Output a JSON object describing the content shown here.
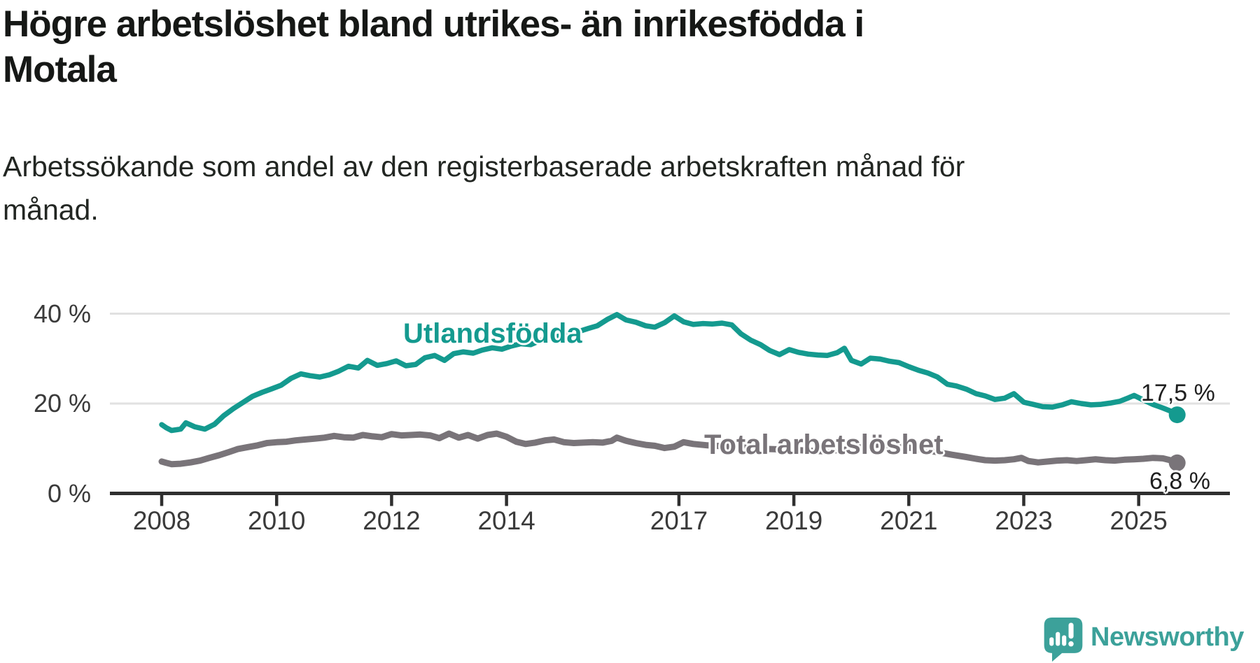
{
  "header": {
    "title_line1": "Högre arbetslöshet bland utrikes- än inrikesfödda i",
    "title_line2": "Motala",
    "subtitle_line1": "Arbetssökande som andel av den registerbaserade arbetskraften månad för",
    "subtitle_line2": "månad."
  },
  "branding": {
    "logo_text": "Newsworthy",
    "logo_color": "#3ca19a",
    "logo_icon": "speech-bubble-with-bar-chart-and-exclamation"
  },
  "chart_data": {
    "type": "line",
    "title": "Högre arbetslöshet bland utrikes- än inrikesfödda i Motala",
    "subtitle": "Arbetssökande som andel av den registerbaserade arbetskraften månad för månad.",
    "unit": "%",
    "grid": "horizontal-only",
    "gridline_color": "#e1e1e1",
    "axis_color": "#2f2f2f",
    "ylim": [
      0,
      43
    ],
    "x_range_years": [
      2007.1,
      2026.6
    ],
    "y_ticks": [
      {
        "value": 0,
        "label": "0 %"
      },
      {
        "value": 20,
        "label": "20 %"
      },
      {
        "value": 40,
        "label": "40 %"
      }
    ],
    "x_ticks": [
      {
        "value": 2008,
        "label": "2008"
      },
      {
        "value": 2010,
        "label": "2010"
      },
      {
        "value": 2012,
        "label": "2012"
      },
      {
        "value": 2014,
        "label": "2014"
      },
      {
        "value": 2017,
        "label": "2017"
      },
      {
        "value": 2019,
        "label": "2019"
      },
      {
        "value": 2021,
        "label": "2021"
      },
      {
        "value": 2023,
        "label": "2023"
      },
      {
        "value": 2025,
        "label": "2025"
      }
    ],
    "series": [
      {
        "id": "utlandsfodda",
        "name": "Utlandsfödda",
        "color": "#149a8f",
        "stroke_width": 7.5,
        "end_value": 17.5,
        "end_label": "17,5 %",
        "points": [
          [
            2008.0,
            15.3
          ],
          [
            2008.08,
            14.6
          ],
          [
            2008.17,
            14.0
          ],
          [
            2008.33,
            14.3
          ],
          [
            2008.42,
            15.7
          ],
          [
            2008.58,
            14.8
          ],
          [
            2008.75,
            14.3
          ],
          [
            2008.92,
            15.4
          ],
          [
            2009.08,
            17.3
          ],
          [
            2009.25,
            18.9
          ],
          [
            2009.42,
            20.3
          ],
          [
            2009.58,
            21.6
          ],
          [
            2009.75,
            22.5
          ],
          [
            2009.92,
            23.3
          ],
          [
            2010.08,
            24.1
          ],
          [
            2010.25,
            25.6
          ],
          [
            2010.42,
            26.6
          ],
          [
            2010.58,
            26.2
          ],
          [
            2010.75,
            25.9
          ],
          [
            2010.92,
            26.4
          ],
          [
            2011.08,
            27.2
          ],
          [
            2011.25,
            28.3
          ],
          [
            2011.42,
            27.9
          ],
          [
            2011.58,
            29.6
          ],
          [
            2011.75,
            28.5
          ],
          [
            2011.92,
            28.9
          ],
          [
            2012.08,
            29.5
          ],
          [
            2012.25,
            28.4
          ],
          [
            2012.42,
            28.7
          ],
          [
            2012.58,
            30.2
          ],
          [
            2012.75,
            30.7
          ],
          [
            2012.92,
            29.6
          ],
          [
            2013.08,
            31.1
          ],
          [
            2013.25,
            31.5
          ],
          [
            2013.42,
            31.2
          ],
          [
            2013.58,
            31.9
          ],
          [
            2013.75,
            32.4
          ],
          [
            2013.92,
            32.1
          ],
          [
            2014.08,
            32.8
          ],
          [
            2014.25,
            33.3
          ],
          [
            2014.42,
            33.1
          ],
          [
            2014.58,
            34.0
          ],
          [
            2014.75,
            34.6
          ],
          [
            2014.92,
            35.0
          ],
          [
            2015.08,
            35.4
          ],
          [
            2015.25,
            36.0
          ],
          [
            2015.42,
            36.7
          ],
          [
            2015.58,
            37.3
          ],
          [
            2015.75,
            38.7
          ],
          [
            2015.92,
            39.8
          ],
          [
            2016.08,
            38.6
          ],
          [
            2016.25,
            38.1
          ],
          [
            2016.42,
            37.3
          ],
          [
            2016.58,
            37.0
          ],
          [
            2016.75,
            38.0
          ],
          [
            2016.92,
            39.5
          ],
          [
            2017.08,
            38.2
          ],
          [
            2017.25,
            37.6
          ],
          [
            2017.42,
            37.8
          ],
          [
            2017.58,
            37.7
          ],
          [
            2017.75,
            37.9
          ],
          [
            2017.92,
            37.5
          ],
          [
            2018.08,
            35.5
          ],
          [
            2018.25,
            34.1
          ],
          [
            2018.42,
            33.1
          ],
          [
            2018.58,
            31.8
          ],
          [
            2018.75,
            30.9
          ],
          [
            2018.92,
            32.0
          ],
          [
            2019.08,
            31.4
          ],
          [
            2019.25,
            31.0
          ],
          [
            2019.42,
            30.8
          ],
          [
            2019.58,
            30.7
          ],
          [
            2019.75,
            31.3
          ],
          [
            2019.88,
            32.3
          ],
          [
            2020.0,
            29.6
          ],
          [
            2020.17,
            28.8
          ],
          [
            2020.33,
            30.1
          ],
          [
            2020.5,
            29.9
          ],
          [
            2020.67,
            29.4
          ],
          [
            2020.83,
            29.1
          ],
          [
            2021.0,
            28.2
          ],
          [
            2021.17,
            27.4
          ],
          [
            2021.33,
            26.8
          ],
          [
            2021.5,
            25.9
          ],
          [
            2021.67,
            24.3
          ],
          [
            2021.83,
            23.9
          ],
          [
            2022.0,
            23.2
          ],
          [
            2022.17,
            22.2
          ],
          [
            2022.33,
            21.7
          ],
          [
            2022.5,
            20.9
          ],
          [
            2022.67,
            21.2
          ],
          [
            2022.83,
            22.2
          ],
          [
            2023.0,
            20.3
          ],
          [
            2023.17,
            19.8
          ],
          [
            2023.33,
            19.3
          ],
          [
            2023.5,
            19.2
          ],
          [
            2023.67,
            19.7
          ],
          [
            2023.83,
            20.4
          ],
          [
            2024.0,
            20.0
          ],
          [
            2024.17,
            19.7
          ],
          [
            2024.33,
            19.8
          ],
          [
            2024.5,
            20.1
          ],
          [
            2024.67,
            20.5
          ],
          [
            2024.83,
            21.3
          ],
          [
            2024.92,
            21.8
          ],
          [
            2025.08,
            20.8
          ],
          [
            2025.25,
            19.8
          ],
          [
            2025.42,
            19.0
          ],
          [
            2025.58,
            18.2
          ],
          [
            2025.67,
            17.5
          ]
        ]
      },
      {
        "id": "total",
        "name": "Total arbetslöshet",
        "color": "#797479",
        "stroke_width": 9,
        "end_value": 6.8,
        "end_label": "6,8 %",
        "points": [
          [
            2008.0,
            7.1
          ],
          [
            2008.08,
            6.8
          ],
          [
            2008.17,
            6.5
          ],
          [
            2008.33,
            6.6
          ],
          [
            2008.5,
            6.9
          ],
          [
            2008.67,
            7.3
          ],
          [
            2008.83,
            7.9
          ],
          [
            2009.0,
            8.5
          ],
          [
            2009.17,
            9.2
          ],
          [
            2009.33,
            9.9
          ],
          [
            2009.5,
            10.3
          ],
          [
            2009.67,
            10.7
          ],
          [
            2009.83,
            11.2
          ],
          [
            2010.0,
            11.4
          ],
          [
            2010.17,
            11.5
          ],
          [
            2010.33,
            11.8
          ],
          [
            2010.5,
            12.0
          ],
          [
            2010.67,
            12.2
          ],
          [
            2010.83,
            12.4
          ],
          [
            2011.0,
            12.8
          ],
          [
            2011.17,
            12.5
          ],
          [
            2011.33,
            12.4
          ],
          [
            2011.5,
            13.0
          ],
          [
            2011.67,
            12.7
          ],
          [
            2011.83,
            12.5
          ],
          [
            2012.0,
            13.2
          ],
          [
            2012.17,
            12.9
          ],
          [
            2012.33,
            13.0
          ],
          [
            2012.5,
            13.1
          ],
          [
            2012.67,
            12.9
          ],
          [
            2012.83,
            12.3
          ],
          [
            2013.0,
            13.3
          ],
          [
            2013.17,
            12.4
          ],
          [
            2013.33,
            13.0
          ],
          [
            2013.5,
            12.2
          ],
          [
            2013.67,
            13.0
          ],
          [
            2013.83,
            13.3
          ],
          [
            2014.0,
            12.6
          ],
          [
            2014.17,
            11.5
          ],
          [
            2014.33,
            11.0
          ],
          [
            2014.5,
            11.3
          ],
          [
            2014.67,
            11.8
          ],
          [
            2014.83,
            12.0
          ],
          [
            2015.0,
            11.4
          ],
          [
            2015.17,
            11.2
          ],
          [
            2015.33,
            11.3
          ],
          [
            2015.5,
            11.4
          ],
          [
            2015.67,
            11.3
          ],
          [
            2015.83,
            11.7
          ],
          [
            2015.92,
            12.4
          ],
          [
            2016.08,
            11.7
          ],
          [
            2016.25,
            11.2
          ],
          [
            2016.42,
            10.8
          ],
          [
            2016.58,
            10.6
          ],
          [
            2016.75,
            10.1
          ],
          [
            2016.92,
            10.4
          ],
          [
            2017.08,
            11.4
          ],
          [
            2017.25,
            11.0
          ],
          [
            2017.5,
            10.7
          ],
          [
            2017.75,
            10.5
          ],
          [
            2018.0,
            10.3
          ],
          [
            2018.25,
            10.1
          ],
          [
            2018.5,
            9.9
          ],
          [
            2018.75,
            9.8
          ],
          [
            2019.0,
            9.7
          ],
          [
            2019.25,
            9.5
          ],
          [
            2019.5,
            9.4
          ],
          [
            2019.75,
            9.6
          ],
          [
            2020.0,
            9.8
          ],
          [
            2020.25,
            10.6
          ],
          [
            2020.5,
            10.9
          ],
          [
            2020.75,
            10.6
          ],
          [
            2021.0,
            10.2
          ],
          [
            2021.25,
            9.7
          ],
          [
            2021.5,
            9.2
          ],
          [
            2021.75,
            8.6
          ],
          [
            2022.0,
            8.1
          ],
          [
            2022.17,
            7.7
          ],
          [
            2022.33,
            7.4
          ],
          [
            2022.5,
            7.3
          ],
          [
            2022.67,
            7.4
          ],
          [
            2022.83,
            7.6
          ],
          [
            2022.96,
            7.9
          ],
          [
            2023.08,
            7.2
          ],
          [
            2023.25,
            6.9
          ],
          [
            2023.42,
            7.1
          ],
          [
            2023.58,
            7.3
          ],
          [
            2023.75,
            7.4
          ],
          [
            2023.92,
            7.2
          ],
          [
            2024.08,
            7.4
          ],
          [
            2024.25,
            7.6
          ],
          [
            2024.42,
            7.4
          ],
          [
            2024.58,
            7.3
          ],
          [
            2024.75,
            7.5
          ],
          [
            2024.92,
            7.6
          ],
          [
            2025.08,
            7.7
          ],
          [
            2025.25,
            7.9
          ],
          [
            2025.42,
            7.8
          ],
          [
            2025.55,
            7.4
          ],
          [
            2025.67,
            6.8
          ]
        ]
      }
    ],
    "legend_position": "inline-labels-on-lines"
  }
}
